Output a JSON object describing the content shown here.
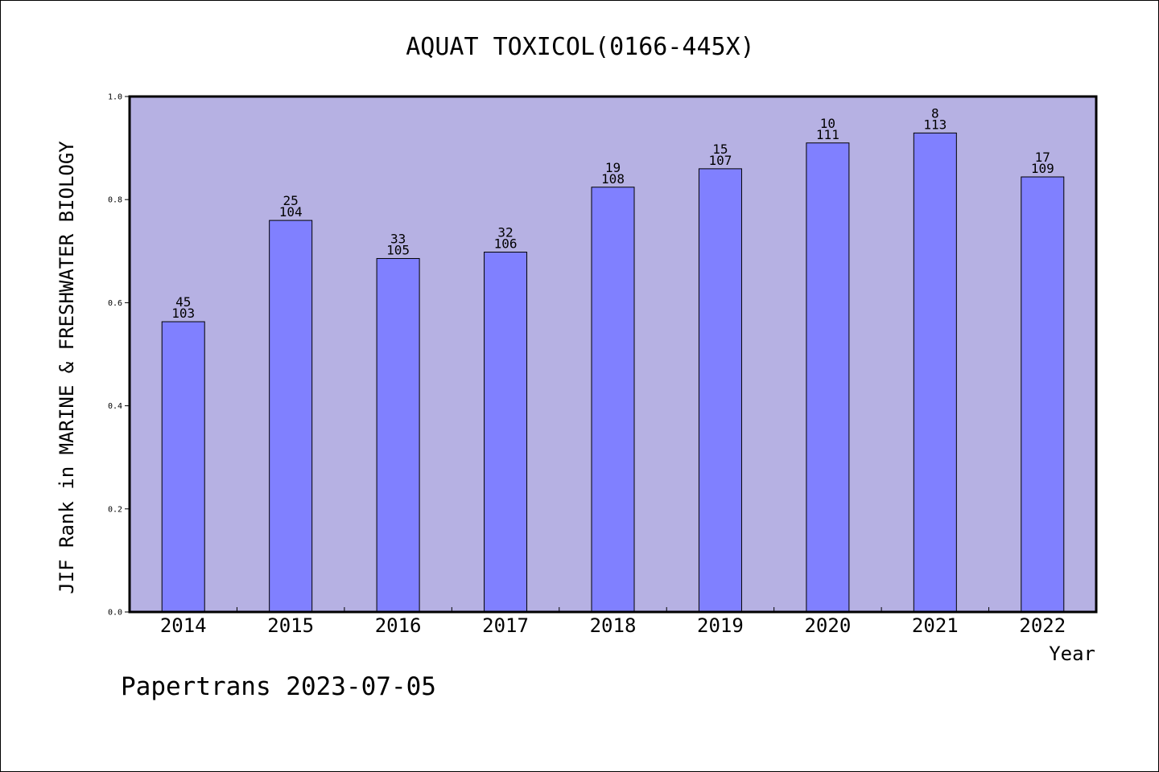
{
  "chart_data": {
    "type": "bar",
    "title": "AQUAT TOXICOL(0166-445X)",
    "xlabel": "Year",
    "ylabel": "JIF Rank in MARINE & FRESHWATER BIOLOGY",
    "ylim": [
      0,
      1.0
    ],
    "yticks": [
      "0.0",
      "0.2",
      "0.4",
      "0.6",
      "0.8",
      "1.0"
    ],
    "grid": false,
    "colors": {
      "plot_background": "#b6b1e3",
      "bar_fill": "#8080ff",
      "bar_stroke": "#000000"
    },
    "categories": [
      "2014",
      "2015",
      "2016",
      "2017",
      "2018",
      "2019",
      "2020",
      "2021",
      "2022"
    ],
    "values": [
      0.5631,
      0.7596,
      0.6857,
      0.6981,
      0.8241,
      0.8598,
      0.9099,
      0.9292,
      0.844
    ],
    "rank_labels": [
      "45",
      "25",
      "33",
      "32",
      "19",
      "15",
      "10",
      "8",
      "17"
    ],
    "total_labels": [
      "103",
      "104",
      "105",
      "106",
      "108",
      "107",
      "111",
      "113",
      "109"
    ]
  },
  "footer": {
    "text": "Papertrans 2023-07-05"
  }
}
